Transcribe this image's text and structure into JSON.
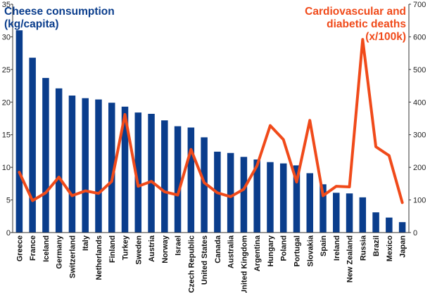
{
  "chart_data": {
    "type": "bar+line",
    "categories": [
      "Greece",
      "France",
      "Iceland",
      "Germany",
      "Switzerland",
      "Italy",
      "Netherlands",
      "Finland",
      "Turkey",
      "Sweden",
      "Austria",
      "Norway",
      "Israel",
      "Czech Republic",
      "United States",
      "Canada",
      "Australia",
      "United Kingdom",
      "Argentina",
      "Hungary",
      "Poland",
      "Portugal",
      "Slovakia",
      "Spain",
      "Ireland",
      "New Zealand",
      "Russia",
      "Brazil",
      "Mexico",
      "Japan"
    ],
    "series": [
      {
        "name": "Cheese consumption (kg/capita)",
        "kind": "bar",
        "axis": "left",
        "color": "#0a3d8c",
        "values": [
          31.0,
          26.8,
          23.7,
          22.1,
          21.0,
          20.6,
          20.4,
          19.9,
          19.3,
          18.4,
          18.2,
          17.2,
          16.3,
          16.1,
          14.6,
          12.4,
          12.2,
          11.6,
          11.2,
          10.8,
          10.6,
          10.3,
          9.1,
          7.4,
          6.1,
          6.0,
          5.4,
          3.1,
          2.3,
          1.6
        ]
      },
      {
        "name": "Cardiovascular and diabetic deaths (x/100k)",
        "kind": "line",
        "axis": "right",
        "color": "#f04a1a",
        "values": [
          185,
          98,
          122,
          170,
          113,
          128,
          120,
          157,
          362,
          142,
          157,
          125,
          115,
          255,
          153,
          122,
          110,
          133,
          205,
          328,
          285,
          155,
          344,
          113,
          142,
          140,
          592,
          263,
          236,
          92
        ]
      }
    ],
    "title_left_line1": "Cheese consumption",
    "title_left_line2": "(kg/capita)",
    "title_right_line1": "Cardiovascular and",
    "title_right_line2": "diabetic deaths",
    "title_right_line3": "(x/100k)",
    "ylim_left": [
      0,
      35
    ],
    "yticks_left": [
      0,
      5,
      10,
      15,
      20,
      25,
      30,
      35
    ],
    "ylim_right": [
      0,
      700
    ],
    "yticks_right": [
      0,
      100,
      200,
      300,
      400,
      500,
      600,
      700
    ],
    "grid": false,
    "title_left_color": "#0a3d8c",
    "title_right_color": "#f04a1a"
  }
}
